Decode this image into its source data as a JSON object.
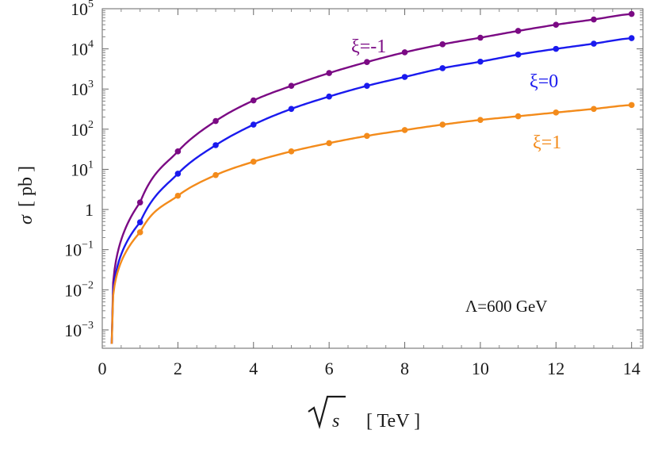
{
  "chart_data": {
    "type": "line",
    "xlabel_symbol": "s",
    "xlabel_unit": "[ TeV ]",
    "ylabel_symbol": "σ",
    "ylabel_unit": "[ pb ]",
    "xlim": [
      0,
      14.3
    ],
    "ylim": [
      0.00035,
      100000
    ],
    "yscale": "log",
    "x_ticks": [
      0,
      2,
      4,
      6,
      8,
      10,
      12,
      14
    ],
    "x_tick_labels": [
      "0",
      "2",
      "4",
      "6",
      "8",
      "10",
      "12",
      "14"
    ],
    "y_ticks": [
      {
        "value": 0.001,
        "label": "10",
        "exp": "−3"
      },
      {
        "value": 0.01,
        "label": "10",
        "exp": "−2"
      },
      {
        "value": 0.1,
        "label": "10",
        "exp": "−1"
      },
      {
        "value": 1,
        "label": "1",
        "exp": ""
      },
      {
        "value": 10,
        "label": "10",
        "exp": "1"
      },
      {
        "value": 100,
        "label": "10",
        "exp": "2"
      },
      {
        "value": 1000,
        "label": "10",
        "exp": "3"
      },
      {
        "value": 10000,
        "label": "10",
        "exp": "4"
      },
      {
        "value": 100000,
        "label": "10",
        "exp": "5"
      }
    ],
    "annotation": "Λ=600 GeV",
    "series": [
      {
        "name": "ξ=-1",
        "color": "#7b0a84",
        "x": [
          1,
          2,
          3,
          4,
          5,
          6,
          7,
          8,
          9,
          10,
          11,
          12,
          13,
          14
        ],
        "y": [
          1.5,
          28,
          160,
          520,
          1200,
          2500,
          4700,
          8200,
          13000,
          19000,
          28000,
          40000,
          54000,
          74000
        ]
      },
      {
        "name": "ξ=0",
        "color": "#1a1aee",
        "x": [
          1,
          2,
          3,
          4,
          5,
          6,
          7,
          8,
          9,
          10,
          11,
          12,
          13,
          14
        ],
        "y": [
          0.48,
          7.8,
          40,
          130,
          320,
          650,
          1200,
          2000,
          3300,
          4800,
          7200,
          10000,
          13500,
          18500
        ]
      },
      {
        "name": "ξ=1",
        "color": "#f38b1b",
        "x": [
          1,
          2,
          3,
          4,
          5,
          6,
          7,
          8,
          9,
          10,
          11,
          12,
          13,
          14
        ],
        "y": [
          0.27,
          2.2,
          7.2,
          15.5,
          28,
          45,
          68,
          95,
          130,
          170,
          210,
          260,
          320,
          400
        ]
      }
    ],
    "curve_start": {
      "x": 0.25,
      "y": 0.00045
    }
  }
}
